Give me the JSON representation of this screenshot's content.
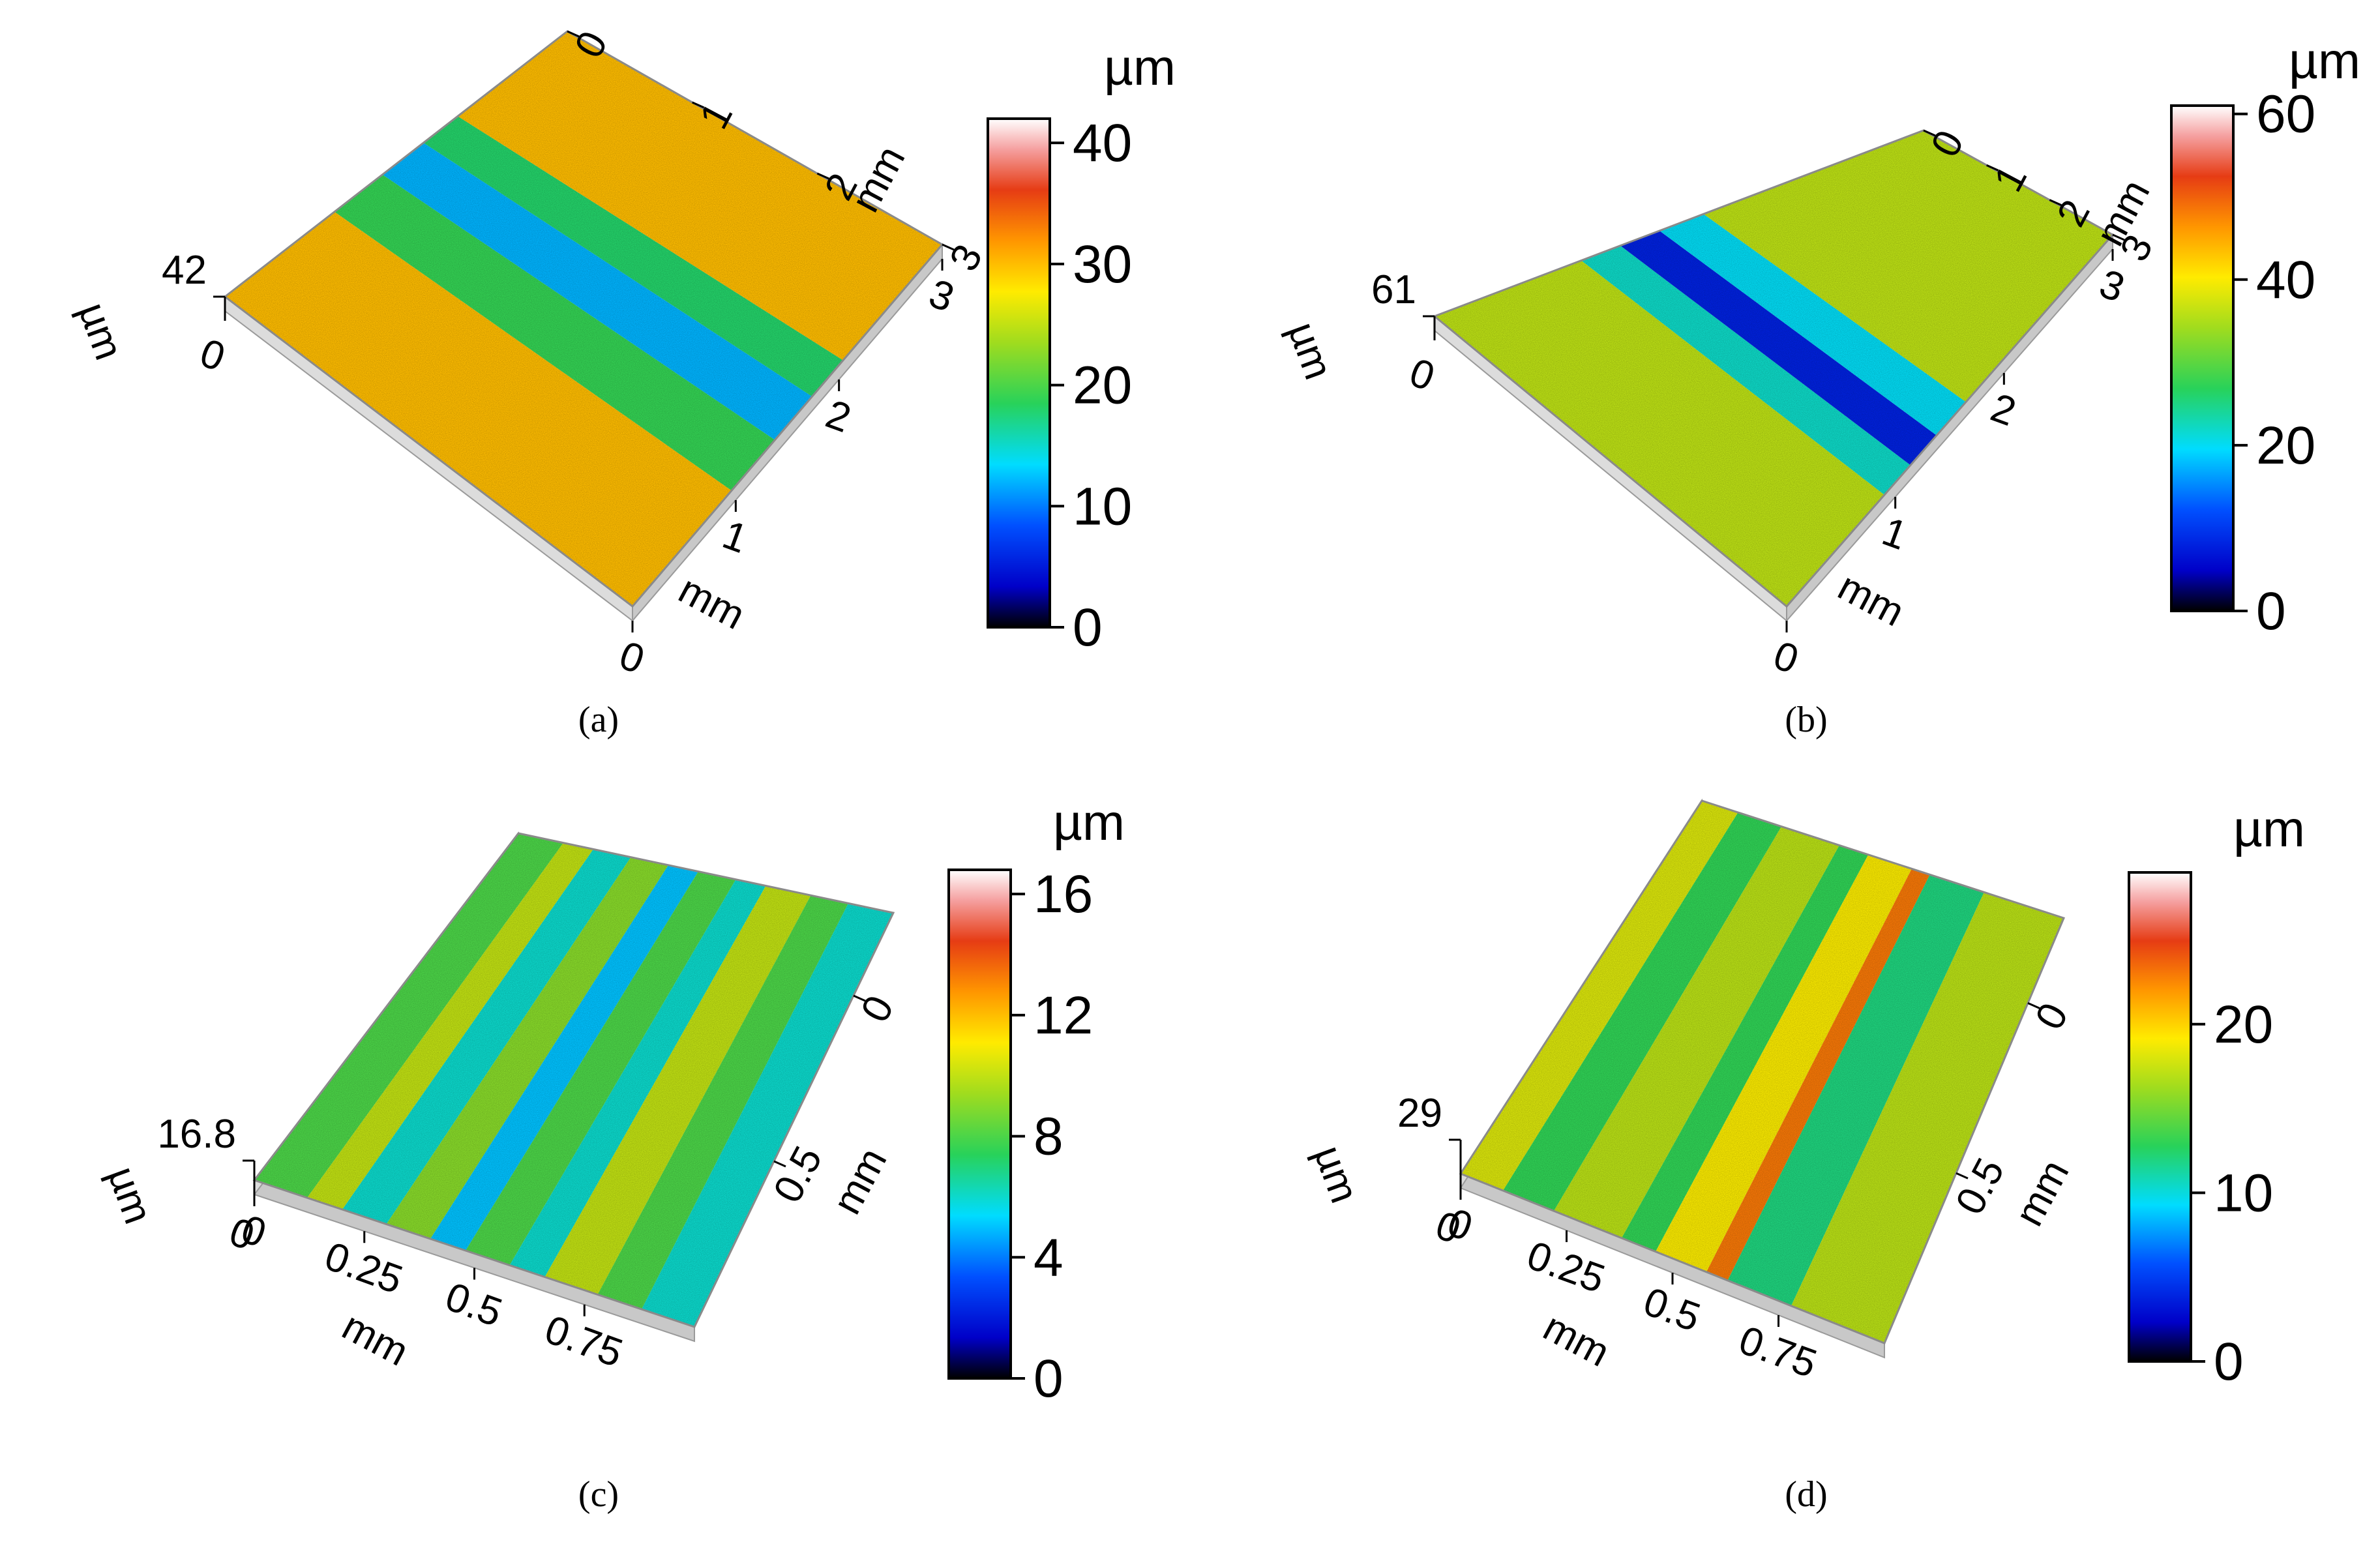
{
  "figure": {
    "panels": [
      {
        "id": "a",
        "caption": "(a)",
        "chart_data": {
          "type": "heatmap",
          "title": "",
          "surface_pattern": "vertical-stripes",
          "z_unit": "µm",
          "z_max_label": "42",
          "z_min_label": "0",
          "x_axis": {
            "label": "mm",
            "ticks": [
              "0",
              "1",
              "2",
              "3"
            ]
          },
          "y_axis": {
            "label": "mm",
            "ticks": [
              "0",
              "1",
              "2",
              "3"
            ]
          },
          "z_axis_label": "µm",
          "colorbar": {
            "unit": "µm",
            "range": [
              0,
              42
            ],
            "ticks": [
              "0",
              "10",
              "20",
              "30",
              "40"
            ],
            "tick_values": [
              0,
              10,
              20,
              30,
              40
            ]
          },
          "stripes": [
            {
              "from": 0.0,
              "to": 0.32,
              "level": 30
            },
            {
              "from": 0.32,
              "to": 0.46,
              "level": 19
            },
            {
              "from": 0.46,
              "to": 0.58,
              "level": 12
            },
            {
              "from": 0.58,
              "to": 0.68,
              "level": 18
            },
            {
              "from": 0.68,
              "to": 1.0,
              "level": 30
            }
          ]
        }
      },
      {
        "id": "b",
        "caption": "(b)",
        "chart_data": {
          "type": "heatmap",
          "title": "",
          "surface_pattern": "vertical-stripes",
          "z_unit": "µm",
          "z_max_label": "61",
          "z_min_label": "0",
          "x_axis": {
            "label": "mm",
            "ticks": [
              "0",
              "1",
              "2",
              "3"
            ]
          },
          "y_axis": {
            "label": "mm",
            "ticks": [
              "0",
              "1",
              "2",
              "3"
            ]
          },
          "z_axis_label": "µm",
          "colorbar": {
            "unit": "µm",
            "range": [
              0,
              61
            ],
            "ticks": [
              "0",
              "20",
              "40",
              "60"
            ],
            "tick_values": [
              0,
              20,
              40,
              60
            ]
          },
          "stripes": [
            {
              "from": 0.0,
              "to": 0.3,
              "level": 36
            },
            {
              "from": 0.3,
              "to": 0.38,
              "level": 22
            },
            {
              "from": 0.38,
              "to": 0.46,
              "level": 8
            },
            {
              "from": 0.46,
              "to": 0.55,
              "level": 20
            },
            {
              "from": 0.55,
              "to": 1.0,
              "level": 36
            }
          ]
        }
      },
      {
        "id": "c",
        "caption": "(c)",
        "chart_data": {
          "type": "heatmap",
          "title": "",
          "surface_pattern": "longitudinal-grooves",
          "z_unit": "µm",
          "z_max_label": "16.8",
          "z_min_label": "0",
          "x_axis": {
            "label": "mm",
            "ticks": [
              "0",
              "0.25",
              "0.5",
              "0.75"
            ]
          },
          "y_axis": {
            "label": "mm",
            "ticks": [
              "0",
              "0.5"
            ]
          },
          "z_axis_label": "µm",
          "colorbar": {
            "unit": "µm",
            "range": [
              0,
              16.8
            ],
            "ticks": [
              "0",
              "4",
              "8",
              "12",
              "16"
            ],
            "tick_values": [
              0,
              4,
              8,
              12,
              16
            ]
          },
          "stripes": [
            {
              "from": 0.0,
              "to": 0.12,
              "level": 8
            },
            {
              "from": 0.12,
              "to": 0.2,
              "level": 10
            },
            {
              "from": 0.2,
              "to": 0.3,
              "level": 6
            },
            {
              "from": 0.3,
              "to": 0.4,
              "level": 9
            },
            {
              "from": 0.4,
              "to": 0.48,
              "level": 5
            },
            {
              "from": 0.48,
              "to": 0.58,
              "level": 8
            },
            {
              "from": 0.58,
              "to": 0.66,
              "level": 6
            },
            {
              "from": 0.66,
              "to": 0.78,
              "level": 10
            },
            {
              "from": 0.78,
              "to": 0.88,
              "level": 8
            },
            {
              "from": 0.88,
              "to": 1.0,
              "level": 6
            }
          ]
        }
      },
      {
        "id": "d",
        "caption": "(d)",
        "chart_data": {
          "type": "heatmap",
          "title": "",
          "surface_pattern": "longitudinal-grooves",
          "z_unit": "µm",
          "z_max_label": "29",
          "z_min_label": "0",
          "x_axis": {
            "label": "mm",
            "ticks": [
              "0",
              "0.25",
              "0.5",
              "0.75"
            ]
          },
          "y_axis": {
            "label": "mm",
            "ticks": [
              "0",
              "0.5"
            ]
          },
          "z_axis_label": "µm",
          "colorbar": {
            "unit": "µm",
            "range": [
              0,
              29
            ],
            "ticks": [
              "0",
              "10",
              "20"
            ],
            "tick_values": [
              0,
              10,
              20
            ]
          },
          "stripes": [
            {
              "from": 0.0,
              "to": 0.1,
              "level": 18
            },
            {
              "from": 0.1,
              "to": 0.22,
              "level": 13
            },
            {
              "from": 0.22,
              "to": 0.38,
              "level": 17
            },
            {
              "from": 0.38,
              "to": 0.46,
              "level": 13
            },
            {
              "from": 0.46,
              "to": 0.58,
              "level": 19
            },
            {
              "from": 0.58,
              "to": 0.63,
              "level": 23
            },
            {
              "from": 0.63,
              "to": 0.78,
              "level": 12
            },
            {
              "from": 0.78,
              "to": 1.0,
              "level": 17
            }
          ]
        }
      }
    ]
  }
}
